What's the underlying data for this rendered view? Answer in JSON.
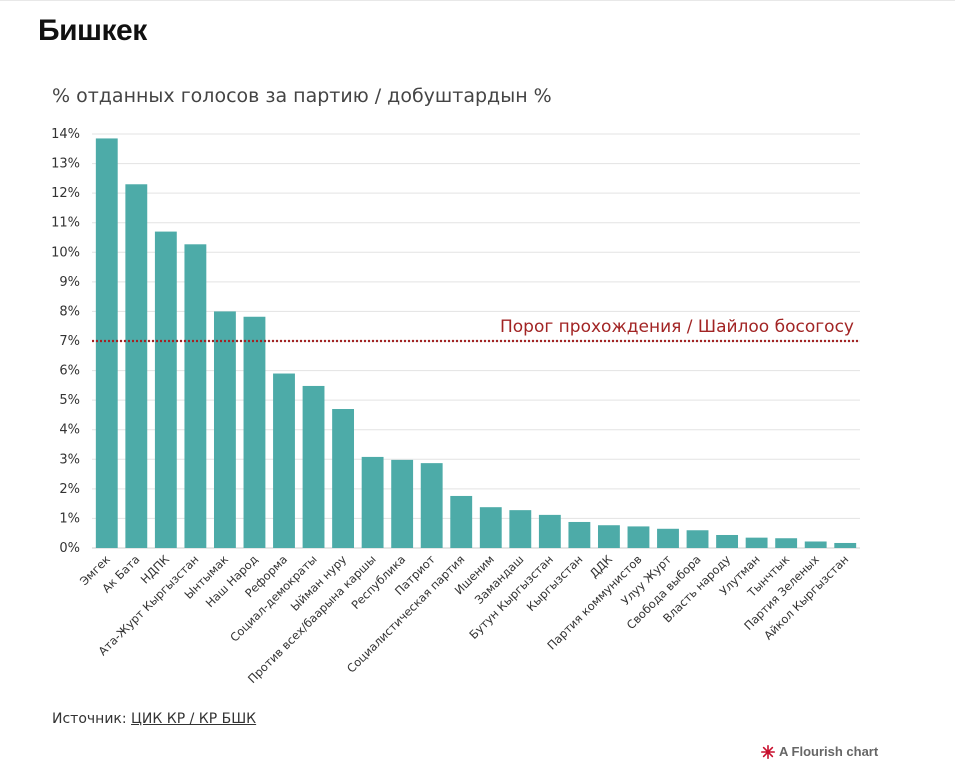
{
  "title": "Бишкек",
  "chart_data": {
    "type": "bar",
    "title": "Бишкек",
    "subtitle": "% отданных голосов за партию / добуштардын %",
    "categories": [
      "Эмгек",
      "Ак Бата",
      "НДПК",
      "Ата-Журт Кыргызстан",
      "Ынтымак",
      "Наш Народ",
      "Реформа",
      "Социал-демократы",
      "Ыйман нуру",
      "Против всех/баарына каршы",
      "Республика",
      "Патриот",
      "Социалистическая партия",
      "Ишеним",
      "Замандаш",
      "Бутун Кыргызстан",
      "Кыргызстан",
      "ДДК",
      "Партия коммунистов",
      "Улуу Журт",
      "Свобода выбора",
      "Власть народу",
      "Улутман",
      "Тынчтык",
      "Партия Зеленых",
      "Айкол Кыргызстан"
    ],
    "values": [
      13.85,
      12.3,
      10.7,
      10.27,
      8.0,
      7.82,
      5.9,
      5.48,
      4.7,
      3.08,
      2.98,
      2.87,
      1.76,
      1.38,
      1.28,
      1.12,
      0.88,
      0.77,
      0.73,
      0.65,
      0.6,
      0.44,
      0.35,
      0.33,
      0.22,
      0.17
    ],
    "ylim": [
      0,
      14
    ],
    "y_ticks": [
      0,
      1,
      2,
      3,
      4,
      5,
      6,
      7,
      8,
      9,
      10,
      11,
      12,
      13,
      14
    ],
    "y_tick_suffix": "%",
    "grid": true,
    "bar_color": "#4daba8",
    "threshold": {
      "value": 7,
      "label": "Порог прохождения / Шайлоо босогосу",
      "color": "#a22424"
    }
  },
  "source": {
    "label": "Источник:",
    "link_text": "ЦИК КР / КР БШК"
  },
  "credit": "A Flourish chart"
}
